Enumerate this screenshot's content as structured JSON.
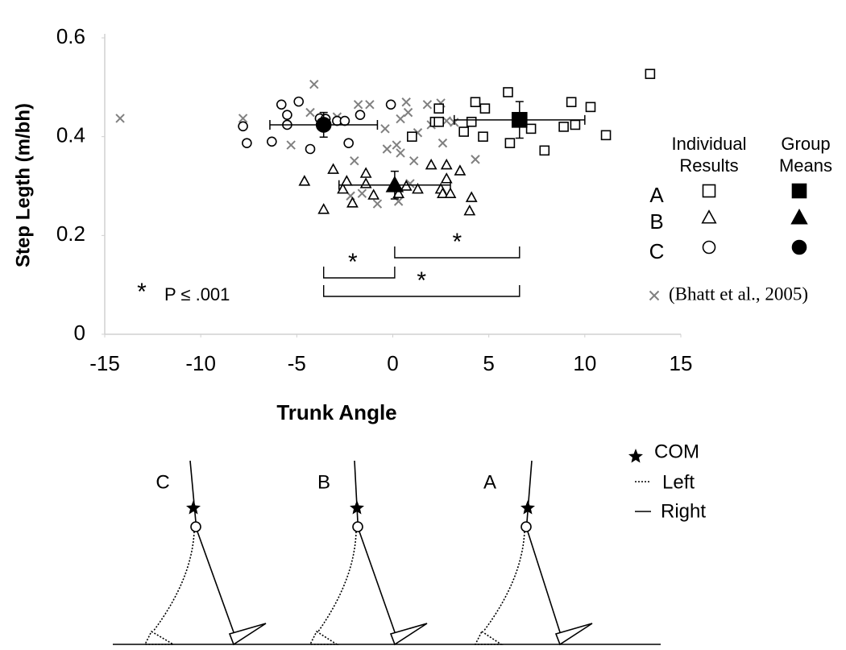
{
  "chart_data": {
    "type": "scatter",
    "x_label": "Trunk Angle",
    "y_label": "Step Legth (m/bh)",
    "xlim": [
      -15,
      15
    ],
    "xticks": [
      -15,
      -10,
      -5,
      0,
      5,
      10,
      15
    ],
    "ylim": [
      0,
      0.6
    ],
    "yticks": [
      0,
      0.2,
      0.4,
      0.6
    ],
    "legend_headers": [
      "Individual Results",
      "Group Means"
    ],
    "series": [
      {
        "name": "A",
        "marker": "square",
        "color": "#000000",
        "x": [
          13.4,
          1.0,
          2.2,
          2.4,
          3.7,
          4.1,
          4.3,
          4.8,
          4.7,
          6.0,
          6.1,
          7.2,
          7.9,
          8.9,
          9.3,
          9.5,
          10.3,
          11.1,
          2.4
        ],
        "values": [
          0.527,
          0.4,
          0.43,
          0.457,
          0.41,
          0.43,
          0.47,
          0.457,
          0.4,
          0.49,
          0.387,
          0.416,
          0.372,
          0.42,
          0.47,
          0.424,
          0.46,
          0.403,
          0.43
        ],
        "mean_x": 6.6,
        "mean_y": 0.434,
        "mean_xerr": 3.4,
        "mean_yerr": 0.037
      },
      {
        "name": "B",
        "marker": "triangle",
        "color": "#000000",
        "x": [
          -4.6,
          -3.6,
          -3.1,
          -2.6,
          -2.4,
          -2.1,
          -1.4,
          -1.4,
          -1.0,
          0.3,
          0.7,
          1.3,
          2.0,
          2.5,
          2.8,
          2.8,
          2.6,
          3.0,
          3.5,
          4.0,
          4.1
        ],
        "values": [
          0.31,
          0.253,
          0.334,
          0.294,
          0.31,
          0.266,
          0.326,
          0.305,
          0.282,
          0.285,
          0.3,
          0.294,
          0.343,
          0.294,
          0.343,
          0.315,
          0.285,
          0.285,
          0.331,
          0.25,
          0.277
        ],
        "mean_x": 0.1,
        "mean_y": 0.302,
        "mean_xerr": 2.9,
        "mean_yerr": 0.028
      },
      {
        "name": "C",
        "marker": "circle",
        "color": "#000000",
        "x": [
          -7.8,
          -7.6,
          -6.3,
          -5.8,
          -5.5,
          -5.5,
          -4.9,
          -4.3,
          -3.8,
          -3.5,
          -2.9,
          -2.5,
          -2.3,
          -1.7,
          -0.1
        ],
        "values": [
          0.421,
          0.387,
          0.39,
          0.465,
          0.444,
          0.424,
          0.471,
          0.375,
          0.437,
          0.436,
          0.432,
          0.432,
          0.387,
          0.444,
          0.465
        ],
        "mean_x": -3.6,
        "mean_y": 0.424,
        "mean_xerr": 2.8,
        "mean_yerr": 0.025
      },
      {
        "name": "(Bhatt et al., 2005)",
        "marker": "x",
        "color": "#808080",
        "x": [
          -14.2,
          -7.8,
          -5.3,
          -4.1,
          -4.3,
          -2.9,
          -2.0,
          -1.8,
          -2.2,
          -1.6,
          -0.8,
          -0.4,
          -0.3,
          0.2,
          0.4,
          0.3,
          0.7,
          0.8,
          0.4,
          1.1,
          0.9,
          1.3,
          1.8,
          2.0,
          2.5,
          2.6,
          2.8,
          3.2,
          4.3,
          -1.2
        ],
        "values": [
          0.437,
          0.437,
          0.383,
          0.506,
          0.449,
          0.44,
          0.351,
          0.465,
          0.28,
          0.285,
          0.264,
          0.416,
          0.375,
          0.383,
          0.367,
          0.269,
          0.47,
          0.449,
          0.436,
          0.351,
          0.305,
          0.408,
          0.465,
          0.424,
          0.468,
          0.387,
          0.432,
          0.429,
          0.354,
          0.465
        ]
      }
    ],
    "significance_marks": [
      "*",
      "*",
      "*"
    ],
    "p_note": {
      "symbol": "*",
      "text": "P ≤ .001"
    }
  },
  "diagram": {
    "figure_labels": [
      "C",
      "B",
      "A"
    ],
    "legend": [
      "COM",
      "Left",
      "Right"
    ]
  }
}
